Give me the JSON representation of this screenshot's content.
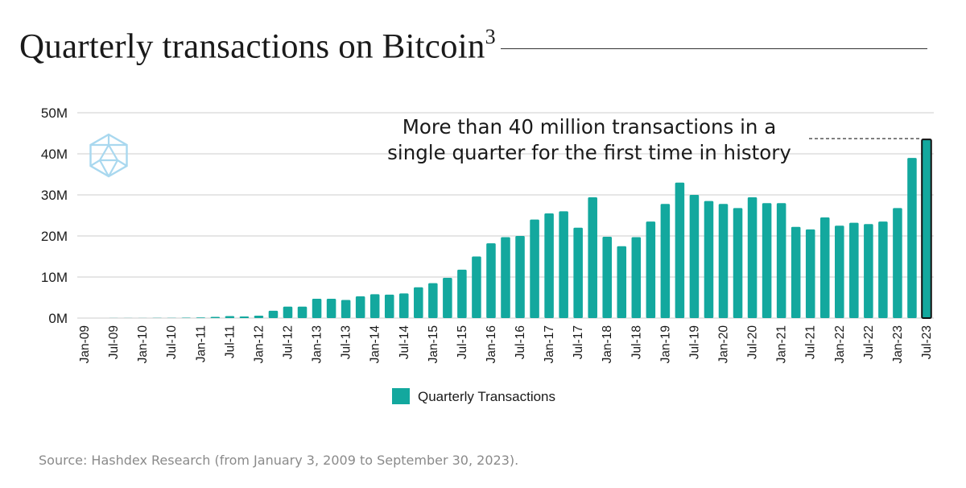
{
  "title": {
    "text": "Quarterly transactions on Bitcoin",
    "superscript": "3"
  },
  "source": "Source: Hashdex Research (from January 3, 2009 to September 30, 2023).",
  "colors": {
    "bar": "#13a89e",
    "highlight_bar": "#13a89e",
    "highlight_border": "#111111",
    "grid": "#d7d7d7",
    "axis_text": "#1a1a1a",
    "logo": "#a9d8ef"
  },
  "chart_data": {
    "type": "bar",
    "title": "Quarterly transactions on Bitcoin",
    "xlabel": "",
    "ylabel": "",
    "ylim": [
      0,
      50000000
    ],
    "yticks": [
      {
        "value": 0,
        "label": "0M"
      },
      {
        "value": 10000000,
        "label": "10M"
      },
      {
        "value": 20000000,
        "label": "20M"
      },
      {
        "value": 30000000,
        "label": "30M"
      },
      {
        "value": 40000000,
        "label": "40M"
      },
      {
        "value": 50000000,
        "label": "50M"
      }
    ],
    "grid": true,
    "legend": {
      "position": "bottom",
      "entries": [
        "Quarterly Transactions"
      ]
    },
    "annotation": {
      "lines": [
        "More than 40 million transactions in a",
        "single quarter for the first time in history"
      ],
      "target_index": 58
    },
    "categories": [
      "Jan-09",
      "Apr-09",
      "Jul-09",
      "Oct-09",
      "Jan-10",
      "Apr-10",
      "Jul-10",
      "Oct-10",
      "Jan-11",
      "Apr-11",
      "Jul-11",
      "Oct-11",
      "Jan-12",
      "Apr-12",
      "Jul-12",
      "Oct-12",
      "Jan-13",
      "Apr-13",
      "Jul-13",
      "Oct-13",
      "Jan-14",
      "Apr-14",
      "Jul-14",
      "Oct-14",
      "Jan-15",
      "Apr-15",
      "Jul-15",
      "Oct-15",
      "Jan-16",
      "Apr-16",
      "Jul-16",
      "Oct-16",
      "Jan-17",
      "Apr-17",
      "Jul-17",
      "Oct-17",
      "Jan-18",
      "Apr-18",
      "Jul-18",
      "Oct-18",
      "Jan-19",
      "Apr-19",
      "Jul-19",
      "Oct-19",
      "Jan-20",
      "Apr-20",
      "Jul-20",
      "Oct-20",
      "Jan-21",
      "Apr-21",
      "Jul-21",
      "Oct-21",
      "Jan-22",
      "Apr-22",
      "Jul-22",
      "Oct-22",
      "Jan-23",
      "Apr-23",
      "Jul-23"
    ],
    "tick_labels": [
      {
        "index": 0,
        "label": "Jan-09"
      },
      {
        "index": 2,
        "label": "Jul-09"
      },
      {
        "index": 4,
        "label": "Jan-10"
      },
      {
        "index": 6,
        "label": "Jul-10"
      },
      {
        "index": 8,
        "label": "Jan-11"
      },
      {
        "index": 10,
        "label": "Jul-11"
      },
      {
        "index": 12,
        "label": "Jan-12"
      },
      {
        "index": 14,
        "label": "Jul-12"
      },
      {
        "index": 16,
        "label": "Jan-13"
      },
      {
        "index": 18,
        "label": "Jul-13"
      },
      {
        "index": 20,
        "label": "Jan-14"
      },
      {
        "index": 22,
        "label": "Jul-14"
      },
      {
        "index": 24,
        "label": "Jan-15"
      },
      {
        "index": 26,
        "label": "Jul-15"
      },
      {
        "index": 28,
        "label": "Jan-16"
      },
      {
        "index": 30,
        "label": "Jul-16"
      },
      {
        "index": 32,
        "label": "Jan-17"
      },
      {
        "index": 34,
        "label": "Jul-17"
      },
      {
        "index": 36,
        "label": "Jan-18"
      },
      {
        "index": 38,
        "label": "Jul-18"
      },
      {
        "index": 40,
        "label": "Jan-19"
      },
      {
        "index": 42,
        "label": "Jul-19"
      },
      {
        "index": 44,
        "label": "Jan-20"
      },
      {
        "index": 46,
        "label": "Jul-20"
      },
      {
        "index": 48,
        "label": "Jan-21"
      },
      {
        "index": 50,
        "label": "Jul-21"
      },
      {
        "index": 52,
        "label": "Jan-22"
      },
      {
        "index": 54,
        "label": "Jul-22"
      },
      {
        "index": 56,
        "label": "Jan-23"
      },
      {
        "index": 58,
        "label": "Jul-23"
      }
    ],
    "series": [
      {
        "name": "Quarterly Transactions",
        "values": [
          5000,
          10000,
          15000,
          20000,
          30000,
          40000,
          60000,
          90000,
          150000,
          300000,
          500000,
          400000,
          600000,
          1800000,
          2800000,
          2800000,
          4700000,
          4700000,
          4400000,
          5300000,
          5800000,
          5700000,
          6000000,
          7500000,
          8500000,
          9800000,
          11800000,
          15000000,
          18200000,
          19700000,
          20000000,
          24000000,
          25500000,
          26000000,
          22000000,
          29400000,
          19800000,
          17500000,
          19700000,
          23500000,
          27800000,
          33000000,
          30000000,
          28500000,
          27800000,
          26800000,
          29400000,
          28000000,
          28000000,
          22200000,
          21600000,
          24500000,
          22500000,
          23200000,
          22900000,
          23500000,
          26800000,
          39000000,
          43500000
        ]
      }
    ]
  }
}
